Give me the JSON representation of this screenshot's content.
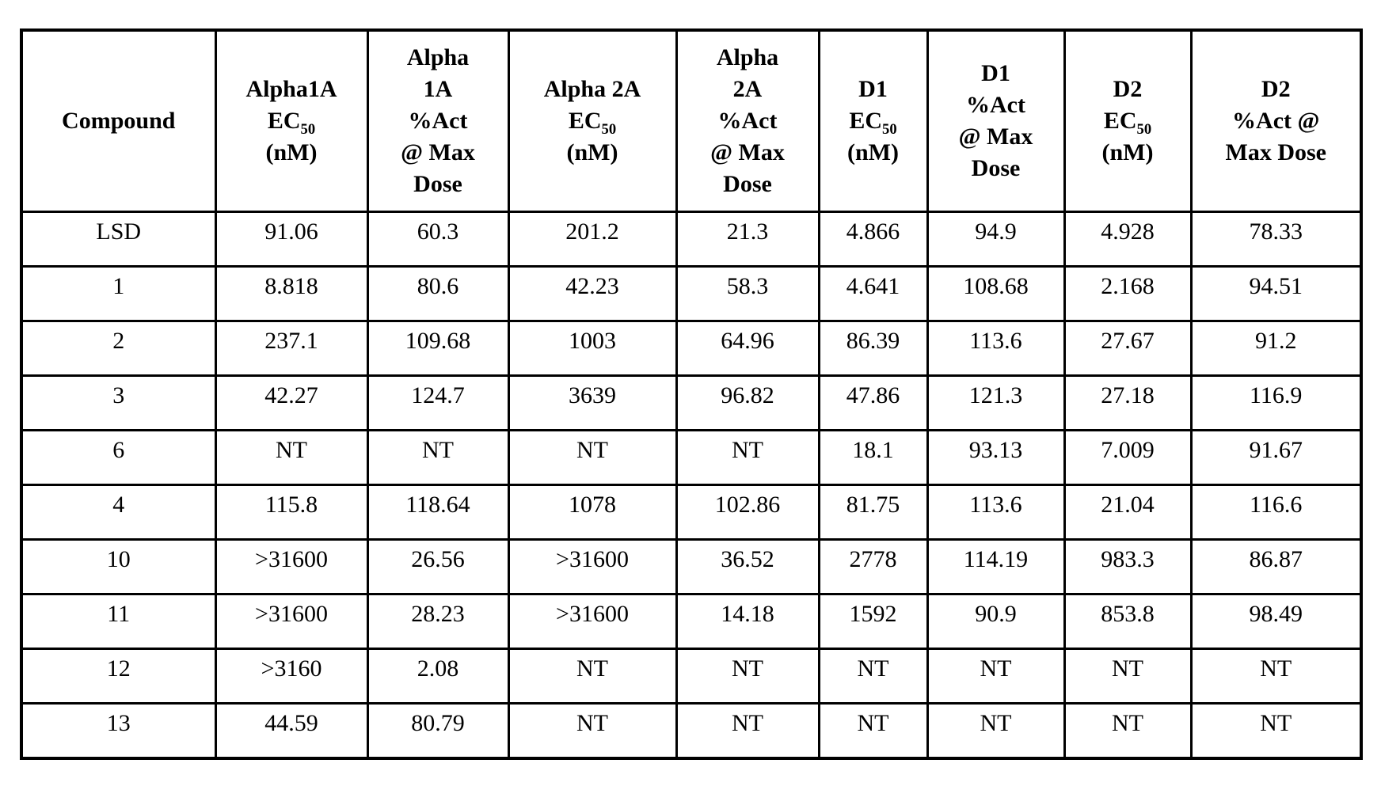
{
  "page": {
    "background_color": "#ffffff",
    "text_color": "#000000",
    "border_color": "#000000"
  },
  "table": {
    "headers": [
      {
        "pre": "Compound",
        "sub": "",
        "post": ""
      },
      {
        "pre": "Alpha1A\nEC",
        "sub": "50",
        "post": "\n(nM)"
      },
      {
        "pre": "Alpha\n1A\n%Act\n@ Max\nDose",
        "sub": "",
        "post": ""
      },
      {
        "pre": "Alpha 2A\nEC",
        "sub": "50",
        "post": "\n(nM)"
      },
      {
        "pre": "Alpha\n2A\n%Act\n@ Max\nDose",
        "sub": "",
        "post": ""
      },
      {
        "pre": "D1\nEC",
        "sub": "50",
        "post": "\n(nM)"
      },
      {
        "pre": "D1\n%Act\n@ Max\nDose",
        "sub": "",
        "post": ""
      },
      {
        "pre": "D2\nEC",
        "sub": "50",
        "post": "\n(nM)"
      },
      {
        "pre": "D2\n%Act @\nMax Dose",
        "sub": "",
        "post": ""
      }
    ],
    "rows": [
      {
        "cells": [
          "LSD",
          "91.06",
          "60.3",
          "201.2",
          "21.3",
          "4.866",
          "94.9",
          "4.928",
          "78.33"
        ]
      },
      {
        "cells": [
          "1",
          "8.818",
          "80.6",
          "42.23",
          "58.3",
          "4.641",
          "108.68",
          "2.168",
          "94.51"
        ]
      },
      {
        "cells": [
          "2",
          "237.1",
          "109.68",
          "1003",
          "64.96",
          "86.39",
          "113.6",
          "27.67",
          "91.2"
        ]
      },
      {
        "cells": [
          "3",
          "42.27",
          "124.7",
          "3639",
          "96.82",
          "47.86",
          "121.3",
          "27.18",
          "116.9"
        ]
      },
      {
        "cells": [
          "6",
          "NT",
          "NT",
          "NT",
          "NT",
          "18.1",
          "93.13",
          "7.009",
          "91.67"
        ]
      },
      {
        "cells": [
          "4",
          "115.8",
          "118.64",
          "1078",
          "102.86",
          "81.75",
          "113.6",
          "21.04",
          "116.6"
        ]
      },
      {
        "cells": [
          "10",
          ">31600",
          "26.56",
          ">31600",
          "36.52",
          "2778",
          "114.19",
          "983.3",
          "86.87"
        ]
      },
      {
        "cells": [
          "11",
          ">31600",
          "28.23",
          ">31600",
          "14.18",
          "1592",
          "90.9",
          "853.8",
          "98.49"
        ]
      },
      {
        "cells": [
          "12",
          ">3160",
          "2.08",
          "NT",
          "NT",
          "NT",
          "NT",
          "NT",
          "NT"
        ]
      },
      {
        "cells": [
          "13",
          "44.59",
          "80.79",
          "NT",
          "NT",
          "NT",
          "NT",
          "NT",
          "NT"
        ]
      }
    ]
  }
}
